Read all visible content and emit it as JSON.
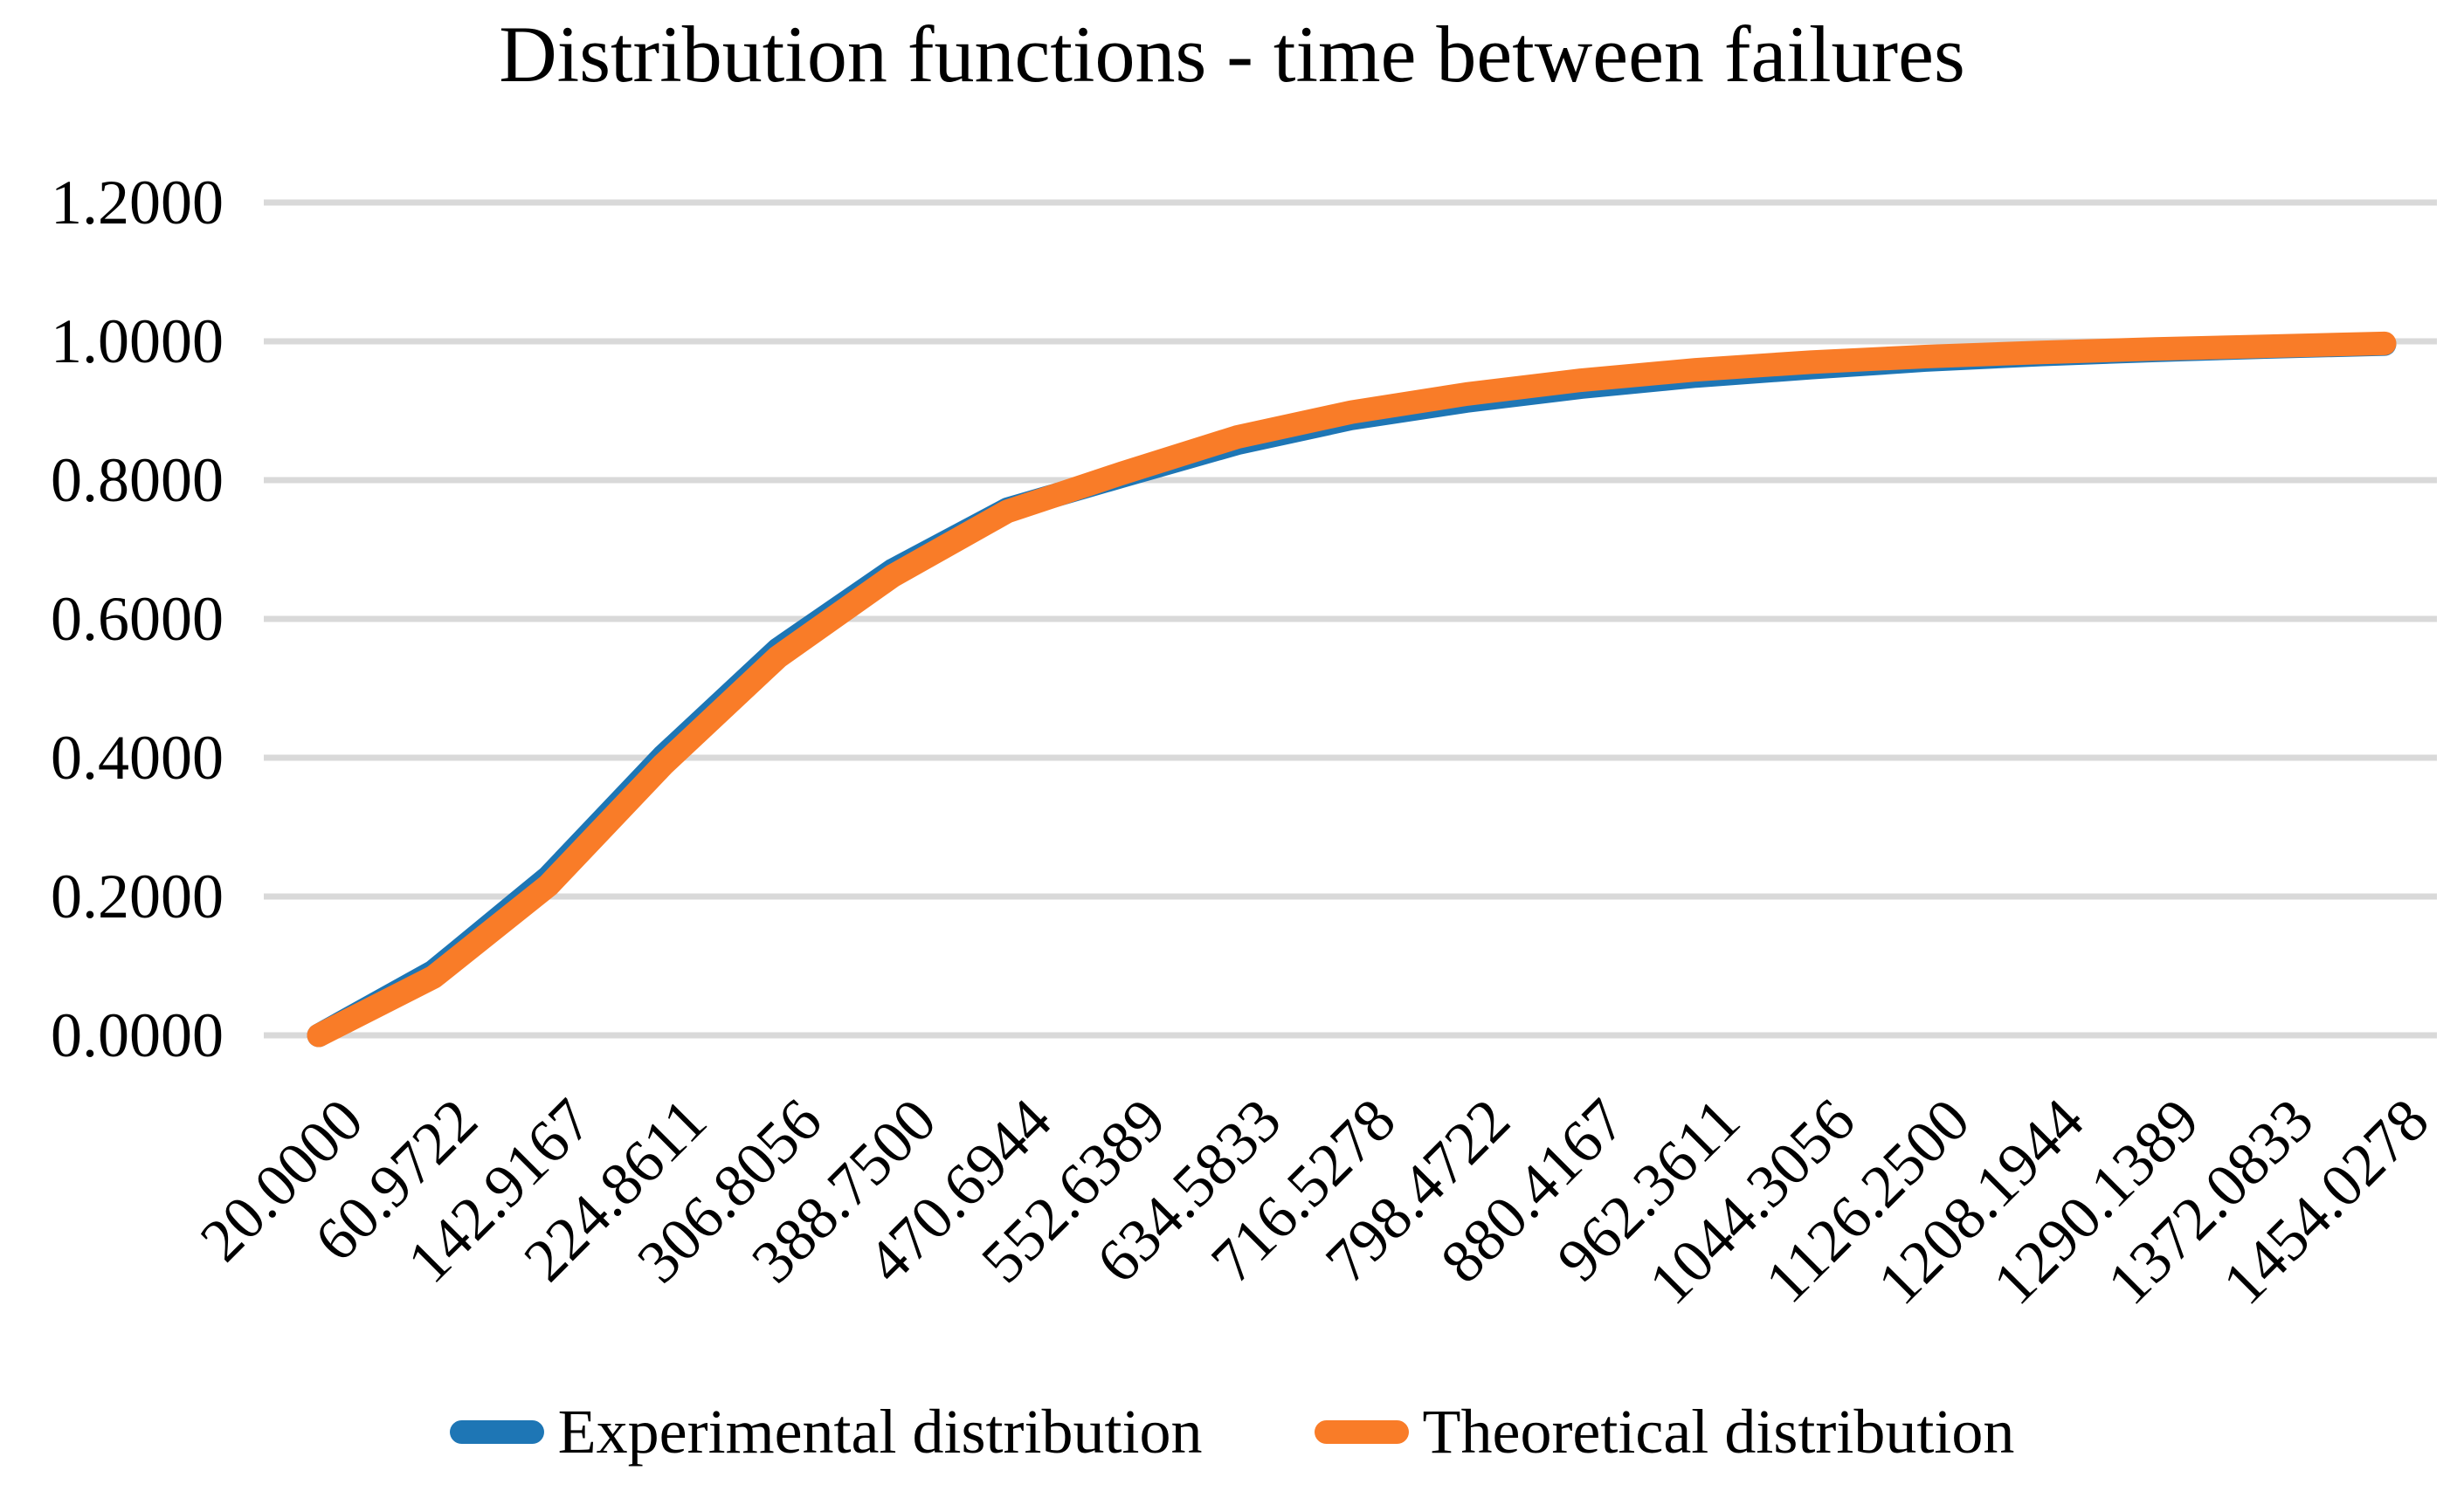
{
  "chart_data": {
    "type": "line",
    "title": "Distribution functions - time between failures",
    "xlabel": "",
    "ylabel": "",
    "categories": [
      "20.0000",
      "60.9722",
      "142.9167",
      "224.8611",
      "306.8056",
      "388.7500",
      "470.6944",
      "552.6389",
      "634.5833",
      "716.5278",
      "798.4722",
      "880.4167",
      "962.3611",
      "1044.3056",
      "1126.2500",
      "1208.1944",
      "1290.1389",
      "1372.0833",
      "1454.0278"
    ],
    "y_ticks": [
      "1.2000",
      "1.0000",
      "0.8000",
      "0.6000",
      "0.4000",
      "0.2000",
      "0.0000"
    ],
    "y_tick_values": [
      1.2,
      1.0,
      0.8,
      0.6,
      0.4,
      0.2,
      0.0
    ],
    "ylim": [
      0,
      1.2
    ],
    "grid": true,
    "gridline_color": "#d9d9d9",
    "legend_position": "bottom",
    "series": [
      {
        "name": "Experimental distribution",
        "color": "#1e76b5",
        "values": [
          0.0,
          0.092,
          0.228,
          0.402,
          0.556,
          0.67,
          0.758,
          0.806,
          0.853,
          0.889,
          0.914,
          0.934,
          0.95,
          0.962,
          0.973,
          0.981,
          0.987,
          0.992,
          0.996
        ]
      },
      {
        "name": "Theoretical distribution",
        "color": "#f97c28",
        "values": [
          0.0,
          0.084,
          0.216,
          0.39,
          0.545,
          0.662,
          0.755,
          0.81,
          0.862,
          0.898,
          0.924,
          0.944,
          0.959,
          0.97,
          0.978,
          0.984,
          0.989,
          0.993,
          0.997
        ]
      }
    ]
  }
}
